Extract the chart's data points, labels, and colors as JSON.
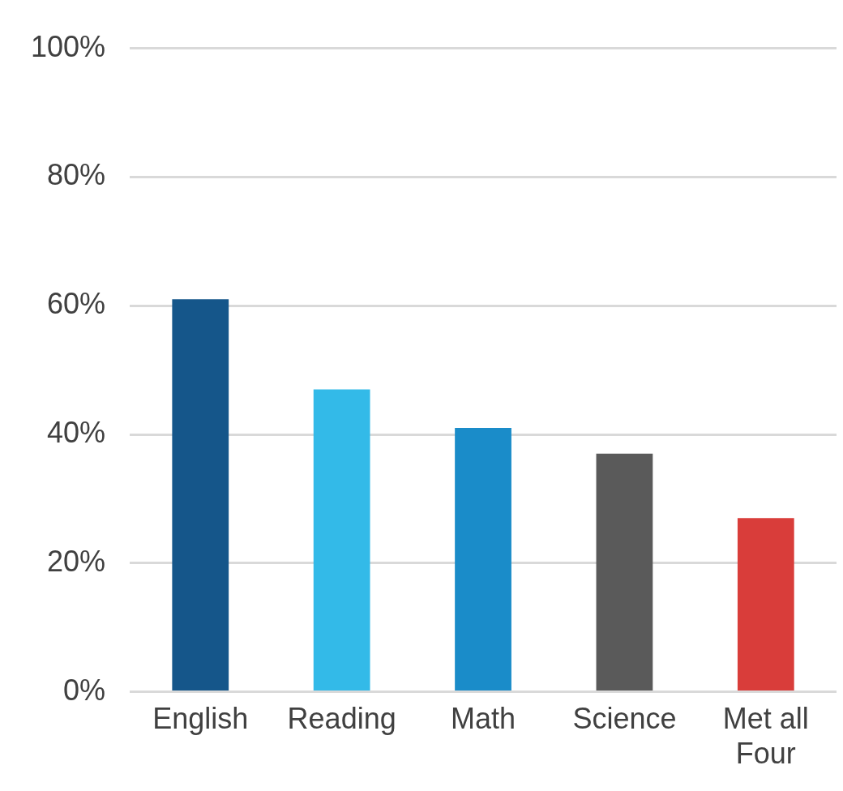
{
  "chart_data": {
    "type": "bar",
    "categories": [
      "English",
      "Reading",
      "Math",
      "Science",
      "Met all Four"
    ],
    "values": [
      61,
      47,
      41,
      37,
      27
    ],
    "colors": [
      "#15568a",
      "#33bae8",
      "#1a8cc9",
      "#5a5a5a",
      "#d93d3a"
    ],
    "ylim": [
      0,
      100
    ],
    "yticks": [
      {
        "value": 0,
        "label": "0%"
      },
      {
        "value": 20,
        "label": "20%"
      },
      {
        "value": 40,
        "label": "40%"
      },
      {
        "value": 60,
        "label": "60%"
      },
      {
        "value": 80,
        "label": "80%"
      },
      {
        "value": 100,
        "label": "100%"
      }
    ],
    "grid": "y",
    "legend": false
  }
}
